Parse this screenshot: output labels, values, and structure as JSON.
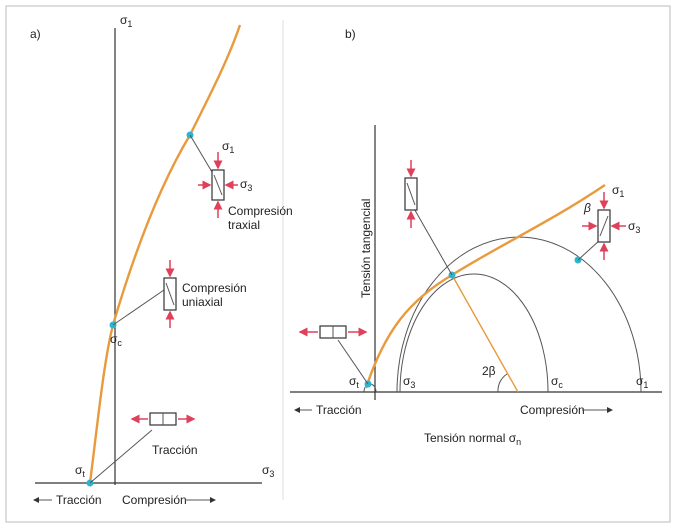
{
  "panel_a": {
    "label": "a)",
    "sigma": "σ",
    "y_axis_sub": "1",
    "x_axis_sub": "3",
    "triaxial": {
      "sub1": "1",
      "sub3": "3",
      "line1": "Compresión",
      "line2": "traxial"
    },
    "uniaxial": {
      "line1": "Compresión",
      "line2": "uniaxial",
      "sub": "c"
    },
    "traction": {
      "text": "Tracción",
      "sub": "t"
    },
    "x_left": "Tracción",
    "x_right": "Compresión"
  },
  "panel_b": {
    "label": "b)",
    "sigma": "σ",
    "y_axis": "Tensión tangencial",
    "x_axis": "Tensión normal",
    "x_axis_sub": "n",
    "x_left": "Tracción",
    "x_right": "Compresión",
    "sub_t": "t",
    "sub_3": "3",
    "angle_2b": "2β",
    "sub_c": "c",
    "sub_1": "1",
    "beta": "β",
    "spec_sub1": "1",
    "spec_sub3": "3"
  }
}
